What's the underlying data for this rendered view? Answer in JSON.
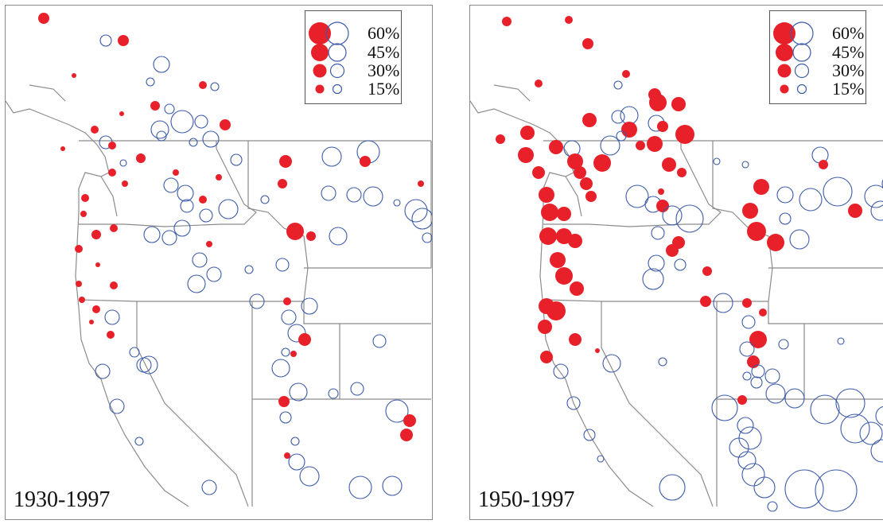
{
  "colors": {
    "increase": "#e8202a",
    "decrease": "#3b5aa8",
    "boundary": "#8c8c8c"
  },
  "legend": {
    "labels": [
      "60%",
      "45%",
      "30%",
      "15%"
    ],
    "values": [
      60,
      45,
      30,
      15
    ]
  },
  "panels": [
    {
      "id": "left",
      "period": "1930-1997"
    },
    {
      "id": "right",
      "period": "1950-1997"
    }
  ]
}
